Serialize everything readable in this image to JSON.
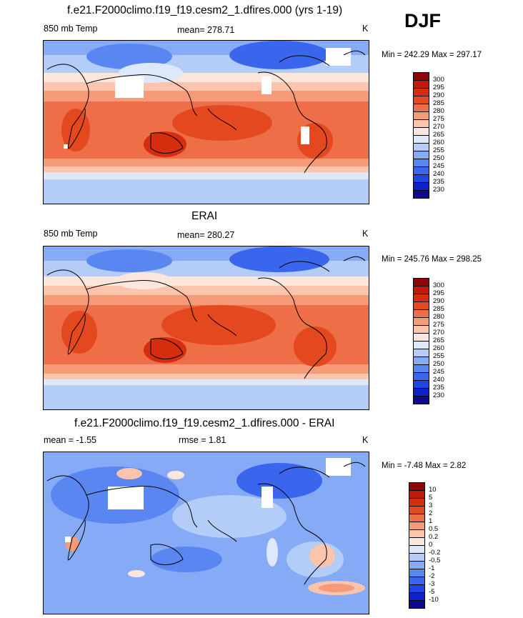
{
  "season": "DJF",
  "colors": {
    "temp_scale": [
      "#0b0b8c",
      "#0d22c8",
      "#1f44e6",
      "#3a66ee",
      "#5a86f2",
      "#86aaf5",
      "#b3cdf8",
      "#dde9fb",
      "#fde6dc",
      "#fbc4ac",
      "#f69a78",
      "#ee6e48",
      "#e4481f",
      "#d52e0f",
      "#bf1a08",
      "#8e0606"
    ],
    "diff_scale": [
      "#0b0b8c",
      "#0d22c8",
      "#1f44e6",
      "#3a66ee",
      "#5a86f2",
      "#86aaf5",
      "#b3cdf8",
      "#dde9fb",
      "#fde6dc",
      "#fbc4ac",
      "#f69a78",
      "#ee6e48",
      "#e4481f",
      "#d52e0f",
      "#bf1a08",
      "#8e0606"
    ]
  },
  "panels": [
    {
      "title": "f.e21.F2000climo.f19_f19.cesm2_1.dfires.000 (yrs 1-19)",
      "left_label": "850 mb Temp",
      "center_label": "mean= 278.71",
      "units": "K",
      "range_label": "Min = 242.29 Max = 297.17",
      "colorbar": [
        "300",
        "295",
        "290",
        "285",
        "280",
        "275",
        "270",
        "265",
        "260",
        "255",
        "250",
        "245",
        "240",
        "235",
        "230"
      ]
    },
    {
      "title": "ERAI",
      "left_label": "850 mb Temp",
      "center_label": "mean= 280.27",
      "units": "K",
      "range_label": "Min = 245.76 Max = 298.25",
      "colorbar": [
        "300",
        "295",
        "290",
        "285",
        "280",
        "275",
        "270",
        "265",
        "260",
        "255",
        "250",
        "245",
        "240",
        "235",
        "230"
      ]
    },
    {
      "title": "f.e21.F2000climo.f19_f19.cesm2_1.dfires.000 - ERAI",
      "left_label": "mean =  -1.55",
      "center_label": "rmse =   1.81",
      "units": "K",
      "range_label": "Min =  -7.48 Max =   2.82",
      "colorbar": [
        "10",
        "5",
        "3",
        "2",
        "1",
        "0.5",
        "0.2",
        "0",
        "-0.2",
        "-0.5",
        "-1",
        "-2",
        "-3",
        "-5",
        "-10"
      ]
    }
  ]
}
